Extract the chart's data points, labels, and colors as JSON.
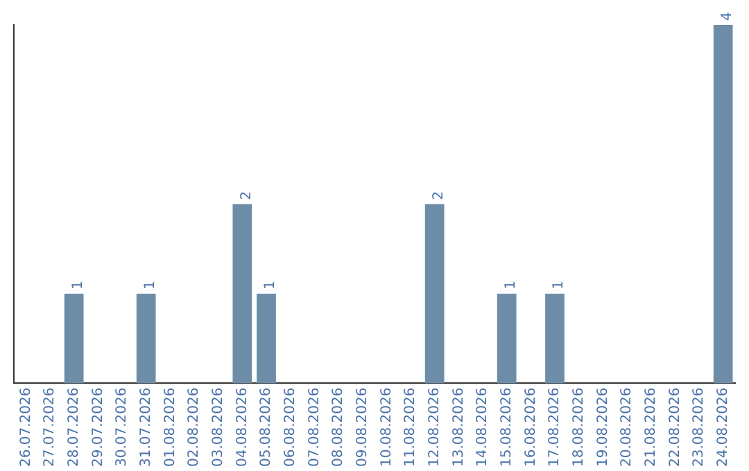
{
  "chart_data": {
    "type": "bar",
    "categories": [
      "26.07.2026",
      "27.07.2026",
      "28.07.2026",
      "29.07.2026",
      "30.07.2026",
      "31.07.2026",
      "01.08.2026",
      "02.08.2026",
      "03.08.2026",
      "04.08.2026",
      "05.08.2026",
      "06.08.2026",
      "07.08.2026",
      "08.08.2026",
      "09.08.2026",
      "10.08.2026",
      "11.08.2026",
      "12.08.2026",
      "13.08.2026",
      "14.08.2026",
      "15.08.2026",
      "16.08.2026",
      "17.08.2026",
      "18.08.2026",
      "19.08.2026",
      "20.08.2026",
      "21.08.2026",
      "22.08.2026",
      "23.08.2026",
      "24.08.2026"
    ],
    "values": [
      0,
      0,
      1,
      0,
      0,
      1,
      0,
      0,
      0,
      2,
      1,
      0,
      0,
      0,
      0,
      0,
      0,
      2,
      0,
      0,
      1,
      0,
      1,
      0,
      0,
      0,
      0,
      0,
      0,
      4
    ],
    "value_labels": [
      null,
      null,
      "1",
      null,
      null,
      "1",
      null,
      null,
      null,
      "2",
      "1",
      null,
      null,
      null,
      null,
      null,
      null,
      "2",
      null,
      null,
      "1",
      null,
      "1",
      null,
      null,
      null,
      null,
      null,
      null,
      "4"
    ],
    "color": "#6d8ca8",
    "grid": false,
    "legend": false,
    "tick_labels": "x"
  }
}
